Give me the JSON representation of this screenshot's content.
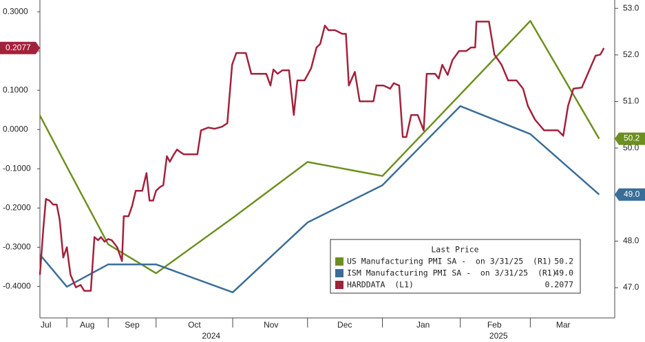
{
  "chart_data": {
    "type": "line",
    "xlim": [
      0,
      9.6
    ],
    "xticks": [
      {
        "value": 0.1,
        "label": "Jul"
      },
      {
        "value": 0.79,
        "label": "Aug"
      },
      {
        "value": 1.54,
        "label": "Sep"
      },
      {
        "value": 2.58,
        "label": "Oct"
      },
      {
        "value": 3.86,
        "label": "Nov"
      },
      {
        "value": 5.09,
        "label": "Dec"
      },
      {
        "value": 6.4,
        "label": "Jan"
      },
      {
        "value": 7.59,
        "label": "Feb"
      },
      {
        "value": 8.74,
        "label": "Mar"
      }
    ],
    "xticks_minor": [
      0.45,
      1.14,
      1.94,
      3.22,
      4.47,
      5.72,
      7.02,
      8.19
    ],
    "xgroups": [
      {
        "value": 2.86,
        "label": "2024"
      },
      {
        "value": 7.66,
        "label": "2025"
      }
    ],
    "ylim": [
      -0.48,
      0.33
    ],
    "yticks": [
      {
        "value": 0.3,
        "label": "0.3000"
      },
      {
        "value": 0.2,
        "label": "0.2000"
      },
      {
        "value": 0.1,
        "label": "0.1000"
      },
      {
        "value": 0,
        "label": "0.0000"
      },
      {
        "value": -0.1,
        "label": "-0.1000"
      },
      {
        "value": -0.2,
        "label": "-0.2000"
      },
      {
        "value": -0.3,
        "label": "-0.3000"
      },
      {
        "value": -0.4,
        "label": "-0.4000"
      }
    ],
    "y2lim": [
      46.35,
      53.18
    ],
    "y2ticks": [
      {
        "value": 47,
        "label": "47.0"
      },
      {
        "value": 48,
        "label": "48.0"
      },
      {
        "value": 49,
        "label": "49.0"
      },
      {
        "value": 50,
        "label": "50.0"
      },
      {
        "value": 51,
        "label": "51.0"
      },
      {
        "value": 52,
        "label": "52.0"
      },
      {
        "value": 53,
        "label": "53.0"
      }
    ],
    "legend_title": "Last Price",
    "series": [
      {
        "name": "US Manufacturing PMI SA -  on 3/31/25  (R1)",
        "color": "#6d8f1f",
        "axis": "y2",
        "x": [
          0,
          0.45,
          1.14,
          1.94,
          3.22,
          4.47,
          5.72,
          7.02,
          8.19,
          9.34
        ],
        "values": [
          50.7,
          49.6,
          47.93,
          47.31,
          48.5,
          49.7,
          49.4,
          51.15,
          52.73,
          50.2
        ],
        "last_label": "50.2"
      },
      {
        "name": "ISM Manufacturing PMI SA -  on 3/31/25  (R1)",
        "color": "#3a6d97",
        "axis": "y2",
        "x": [
          0,
          0.45,
          1.14,
          1.94,
          3.22,
          4.47,
          5.72,
          7.02,
          8.19,
          9.34
        ],
        "values": [
          47.71,
          47.02,
          47.5,
          47.5,
          46.9,
          48.4,
          49.2,
          50.9,
          50.3,
          49
        ],
        "last_label": "49.0"
      },
      {
        "name": "HARDDATA  (L1)",
        "color": "#a2213b",
        "axis": "y",
        "x": [
          0,
          0.06,
          0.1,
          0.16,
          0.22,
          0.28,
          0.33,
          0.39,
          0.45,
          0.51,
          0.6,
          0.68,
          0.74,
          0.85,
          0.91,
          0.97,
          1.02,
          1.08,
          1.14,
          1.2,
          1.29,
          1.37,
          1.4,
          1.48,
          1.54,
          1.6,
          1.71,
          1.78,
          1.83,
          1.89,
          1.94,
          2.01,
          2.06,
          2.12,
          2.17,
          2.23,
          2.29,
          2.35,
          2.4,
          2.52,
          2.63,
          2.69,
          2.81,
          2.92,
          3.04,
          3.13,
          3.21,
          3.28,
          3.44,
          3.53,
          3.7,
          3.78,
          3.85,
          3.9,
          3.97,
          4.05,
          4.16,
          4.24,
          4.3,
          4.42,
          4.53,
          4.62,
          4.68,
          4.76,
          4.82,
          4.93,
          5.05,
          5.11,
          5.16,
          5.26,
          5.34,
          5.45,
          5.57,
          5.62,
          5.74,
          5.85,
          5.91,
          6.0,
          6.06,
          6.12,
          6.2,
          6.31,
          6.41,
          6.46,
          6.6,
          6.66,
          6.72,
          6.81,
          6.89,
          7.0,
          7.12,
          7.2,
          7.27,
          7.29,
          7.5,
          7.59,
          7.71,
          7.82,
          7.96,
          8.07,
          8.15,
          8.27,
          8.42,
          8.65,
          8.74,
          8.82,
          8.91,
          9.05,
          9.19,
          9.28,
          9.36,
          9.42
        ],
        "values": [
          -0.37,
          -0.247,
          -0.177,
          -0.181,
          -0.191,
          -0.191,
          -0.23,
          -0.326,
          -0.3,
          -0.37,
          -0.402,
          -0.396,
          -0.411,
          -0.411,
          -0.274,
          -0.282,
          -0.274,
          -0.286,
          -0.279,
          -0.282,
          -0.3,
          -0.335,
          -0.221,
          -0.221,
          -0.195,
          -0.156,
          -0.156,
          -0.111,
          -0.181,
          -0.181,
          -0.156,
          -0.146,
          -0.142,
          -0.068,
          -0.082,
          -0.065,
          -0.051,
          -0.058,
          -0.063,
          -0.063,
          -0.063,
          -0.002,
          0.005,
          0.002,
          0.007,
          0.016,
          0.165,
          0.195,
          0.195,
          0.142,
          0.142,
          0.142,
          0.112,
          0.153,
          0.142,
          0.151,
          0.151,
          0.037,
          0.125,
          0.125,
          0.156,
          0.209,
          0.218,
          0.265,
          0.253,
          0.253,
          0.244,
          0.244,
          0.112,
          0.147,
          0.072,
          0.072,
          0.072,
          0.112,
          0.112,
          0.104,
          0.118,
          0.112,
          -0.019,
          -0.019,
          0.037,
          0.037,
          -0.002,
          0.142,
          0.142,
          0.13,
          0.165,
          0.139,
          0.177,
          0.2,
          0.2,
          0.209,
          0.209,
          0.275,
          0.275,
          0.191,
          0.165,
          0.125,
          0.125,
          0.104,
          0.06,
          0.025,
          -0.002,
          -0.002,
          -0.016,
          0.06,
          0.104,
          0.107,
          0.156,
          0.188,
          0.191,
          0.2077
        ],
        "last_label": "0.2077"
      }
    ]
  }
}
